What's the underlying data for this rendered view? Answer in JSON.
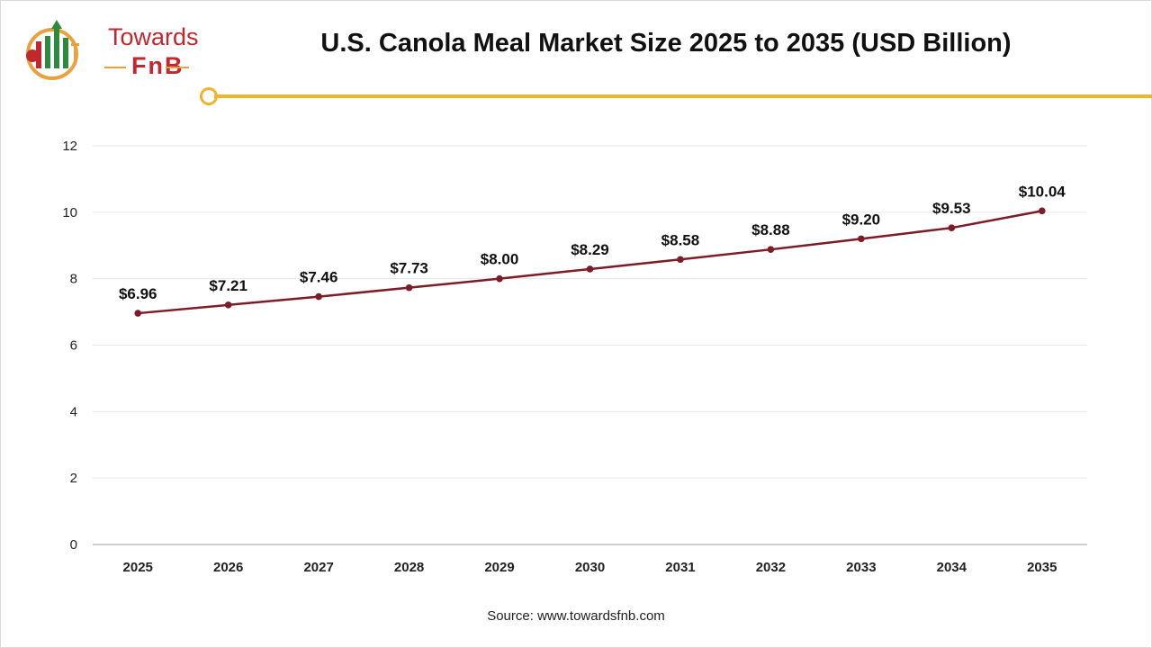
{
  "logo": {
    "line1": "Towards",
    "line2": "FnB"
  },
  "title": "U.S. Canola Meal Market Size 2025 to 2035 (USD Billion)",
  "source": "Source: www.towardsfnb.com",
  "colors": {
    "line": "#7b1c28",
    "accent": "#f0b429",
    "brand_red": "#c1272d"
  },
  "chart_data": {
    "type": "line",
    "title": "U.S. Canola Meal Market Size 2025 to 2035 (USD Billion)",
    "xlabel": "",
    "ylabel": "",
    "categories": [
      "2025",
      "2026",
      "2027",
      "2028",
      "2029",
      "2030",
      "2031",
      "2032",
      "2033",
      "2034",
      "2035"
    ],
    "values": [
      6.96,
      7.21,
      7.46,
      7.73,
      8.0,
      8.29,
      8.58,
      8.88,
      9.2,
      9.53,
      10.04
    ],
    "data_labels": [
      "$6.96",
      "$7.21",
      "$7.46",
      "$7.73",
      "$8.00",
      "$8.29",
      "$8.58",
      "$8.88",
      "$9.20",
      "$9.53",
      "$10.04"
    ],
    "ylim": [
      0,
      12
    ],
    "yticks": [
      0,
      2,
      4,
      6,
      8,
      10,
      12
    ],
    "grid": true,
    "legend": "none"
  }
}
